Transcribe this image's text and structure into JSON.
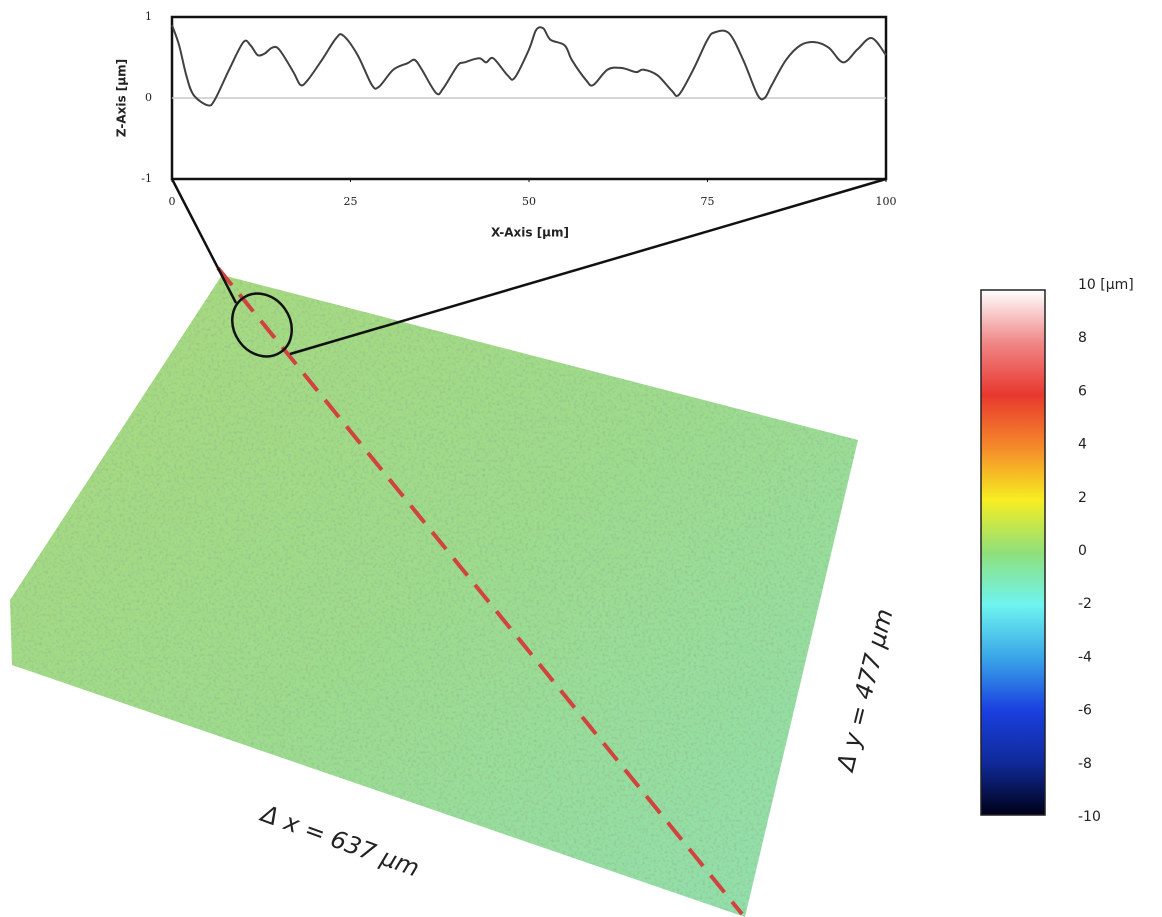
{
  "chart_data": [
    {
      "type": "line",
      "xlabel": "X-Axis [µm]",
      "ylabel": "Z-Axis [µm]",
      "x": [
        0,
        1,
        2,
        3,
        5,
        6,
        8,
        10,
        11,
        12,
        13,
        14,
        15,
        17,
        18,
        19,
        21,
        23,
        24,
        26,
        28,
        29,
        31,
        33,
        34,
        35,
        37,
        38,
        40,
        41,
        43,
        44,
        45,
        47,
        48,
        50,
        51,
        52,
        53,
        55,
        56,
        58,
        59,
        61,
        63,
        65,
        66,
        68,
        70,
        71,
        73,
        75,
        76,
        78,
        80,
        82,
        83,
        84,
        86,
        88,
        90,
        92,
        94,
        96,
        98,
        100
      ],
      "series": [
        {
          "color": "#404040",
          "values": [
            0.9,
            0.65,
            0.28,
            0.04,
            -0.09,
            -0.02,
            0.35,
            0.69,
            0.65,
            0.53,
            0.55,
            0.62,
            0.6,
            0.32,
            0.16,
            0.22,
            0.47,
            0.74,
            0.77,
            0.53,
            0.16,
            0.14,
            0.35,
            0.43,
            0.47,
            0.35,
            0.06,
            0.12,
            0.4,
            0.44,
            0.49,
            0.44,
            0.49,
            0.28,
            0.25,
            0.6,
            0.84,
            0.86,
            0.72,
            0.65,
            0.47,
            0.22,
            0.16,
            0.35,
            0.37,
            0.32,
            0.35,
            0.28,
            0.09,
            0.04,
            0.35,
            0.72,
            0.81,
            0.8,
            0.47,
            0.04,
            0,
            0.16,
            0.47,
            0.65,
            0.69,
            0.62,
            0.44,
            0.6,
            0.74,
            0.53
          ]
        }
      ],
      "xlim": [
        0,
        100
      ],
      "xticks": [
        0,
        25,
        50,
        75,
        100
      ],
      "ylim": [
        -1,
        1
      ],
      "yticks": [
        -1,
        0,
        1
      ],
      "zero_line": true
    },
    {
      "type": "surface",
      "annotations": [
        "Δ x = 637 µm",
        "Δ y = 477 µm"
      ],
      "zlim": [
        -10,
        10
      ],
      "zticks": [
        {
          "value": 10,
          "label": "10 [µm]"
        },
        8,
        6,
        4,
        2,
        0,
        -2,
        -4,
        -6,
        -8,
        -10
      ],
      "colormap": [
        "#ffffff",
        "#f08888",
        "#e8382e",
        "#f58a2a",
        "#f7ee22",
        "#8fe07a",
        "#6ff4f0",
        "#3aa6e8",
        "#1a40e0",
        "#102a9a",
        "#000018"
      ]
    }
  ]
}
